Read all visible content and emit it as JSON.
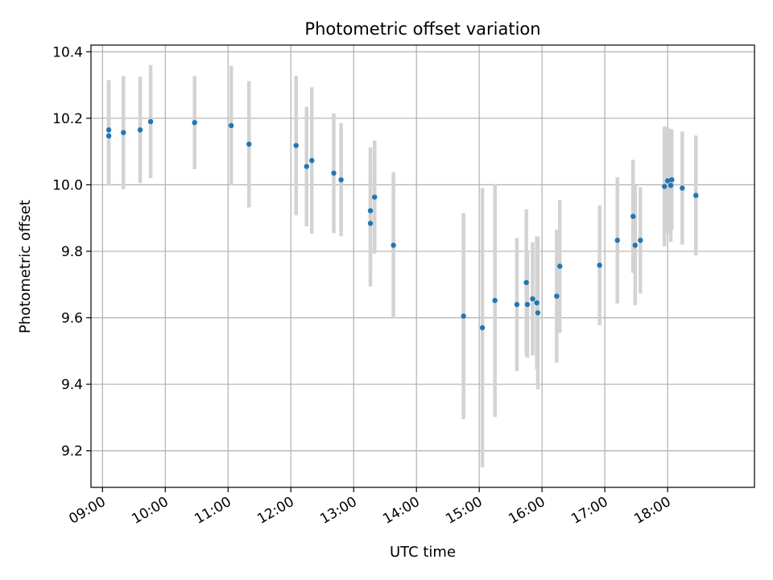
{
  "chart_data": {
    "type": "scatter",
    "title": "Photometric offset variation",
    "xlabel": "UTC time",
    "ylabel": "Photometric offset",
    "x_ticks": [
      "09:00",
      "10:00",
      "11:00",
      "12:00",
      "13:00",
      "14:00",
      "15:00",
      "16:00",
      "17:00",
      "18:00"
    ],
    "y_ticks": [
      "9.2",
      "9.4",
      "9.6",
      "9.8",
      "10.0",
      "10.2",
      "10.4"
    ],
    "xlim": [
      "08:49",
      "19:23"
    ],
    "ylim": [
      9.09,
      10.42
    ],
    "grid": true,
    "colors": {
      "point": "#1f77b4",
      "errorbar": "#d3d3d3",
      "grid": "#b0b0b0"
    },
    "series": [
      {
        "points": [
          {
            "x": "09:06",
            "y": 10.165,
            "err": 0.15
          },
          {
            "x": "09:06",
            "y": 10.147,
            "err": 0.15
          },
          {
            "x": "09:20",
            "y": 10.157,
            "err": 0.17
          },
          {
            "x": "09:36",
            "y": 10.165,
            "err": 0.16
          },
          {
            "x": "09:46",
            "y": 10.19,
            "err": 0.17
          },
          {
            "x": "10:28",
            "y": 10.187,
            "err": 0.14
          },
          {
            "x": "11:03",
            "y": 10.178,
            "err": 0.18
          },
          {
            "x": "11:20",
            "y": 10.122,
            "err": 0.19
          },
          {
            "x": "12:05",
            "y": 10.118,
            "err": 0.21
          },
          {
            "x": "12:15",
            "y": 10.055,
            "err": 0.18
          },
          {
            "x": "12:20",
            "y": 10.073,
            "err": 0.22
          },
          {
            "x": "12:41",
            "y": 10.035,
            "err": 0.18
          },
          {
            "x": "12:48",
            "y": 10.015,
            "err": 0.17
          },
          {
            "x": "13:16",
            "y": 9.922,
            "err": 0.19
          },
          {
            "x": "13:16",
            "y": 9.884,
            "err": 0.19
          },
          {
            "x": "13:20",
            "y": 9.963,
            "err": 0.17
          },
          {
            "x": "13:38",
            "y": 9.818,
            "err": 0.22
          },
          {
            "x": "14:45",
            "y": 9.605,
            "err": 0.31
          },
          {
            "x": "15:03",
            "y": 9.57,
            "err": 0.42
          },
          {
            "x": "15:15",
            "y": 9.652,
            "err": 0.35
          },
          {
            "x": "15:36",
            "y": 9.64,
            "err": 0.2
          },
          {
            "x": "15:45",
            "y": 9.706,
            "err": 0.22
          },
          {
            "x": "15:46",
            "y": 9.64,
            "err": 0.16
          },
          {
            "x": "15:51",
            "y": 9.657,
            "err": 0.17
          },
          {
            "x": "15:55",
            "y": 9.645,
            "err": 0.2
          },
          {
            "x": "15:56",
            "y": 9.615,
            "err": 0.23
          },
          {
            "x": "16:14",
            "y": 9.665,
            "err": 0.2
          },
          {
            "x": "16:17",
            "y": 9.755,
            "err": 0.2
          },
          {
            "x": "16:55",
            "y": 9.758,
            "err": 0.18
          },
          {
            "x": "17:12",
            "y": 9.833,
            "err": 0.19
          },
          {
            "x": "17:27",
            "y": 9.905,
            "err": 0.17
          },
          {
            "x": "17:29",
            "y": 9.818,
            "err": 0.18
          },
          {
            "x": "17:34",
            "y": 9.833,
            "err": 0.16
          },
          {
            "x": "17:57",
            "y": 9.995,
            "err": 0.18
          },
          {
            "x": "18:00",
            "y": 10.012,
            "err": 0.16
          },
          {
            "x": "18:03",
            "y": 9.998,
            "err": 0.17
          },
          {
            "x": "18:04",
            "y": 10.015,
            "err": 0.15
          },
          {
            "x": "18:14",
            "y": 9.99,
            "err": 0.17
          },
          {
            "x": "18:27",
            "y": 9.968,
            "err": 0.18
          }
        ]
      }
    ]
  }
}
